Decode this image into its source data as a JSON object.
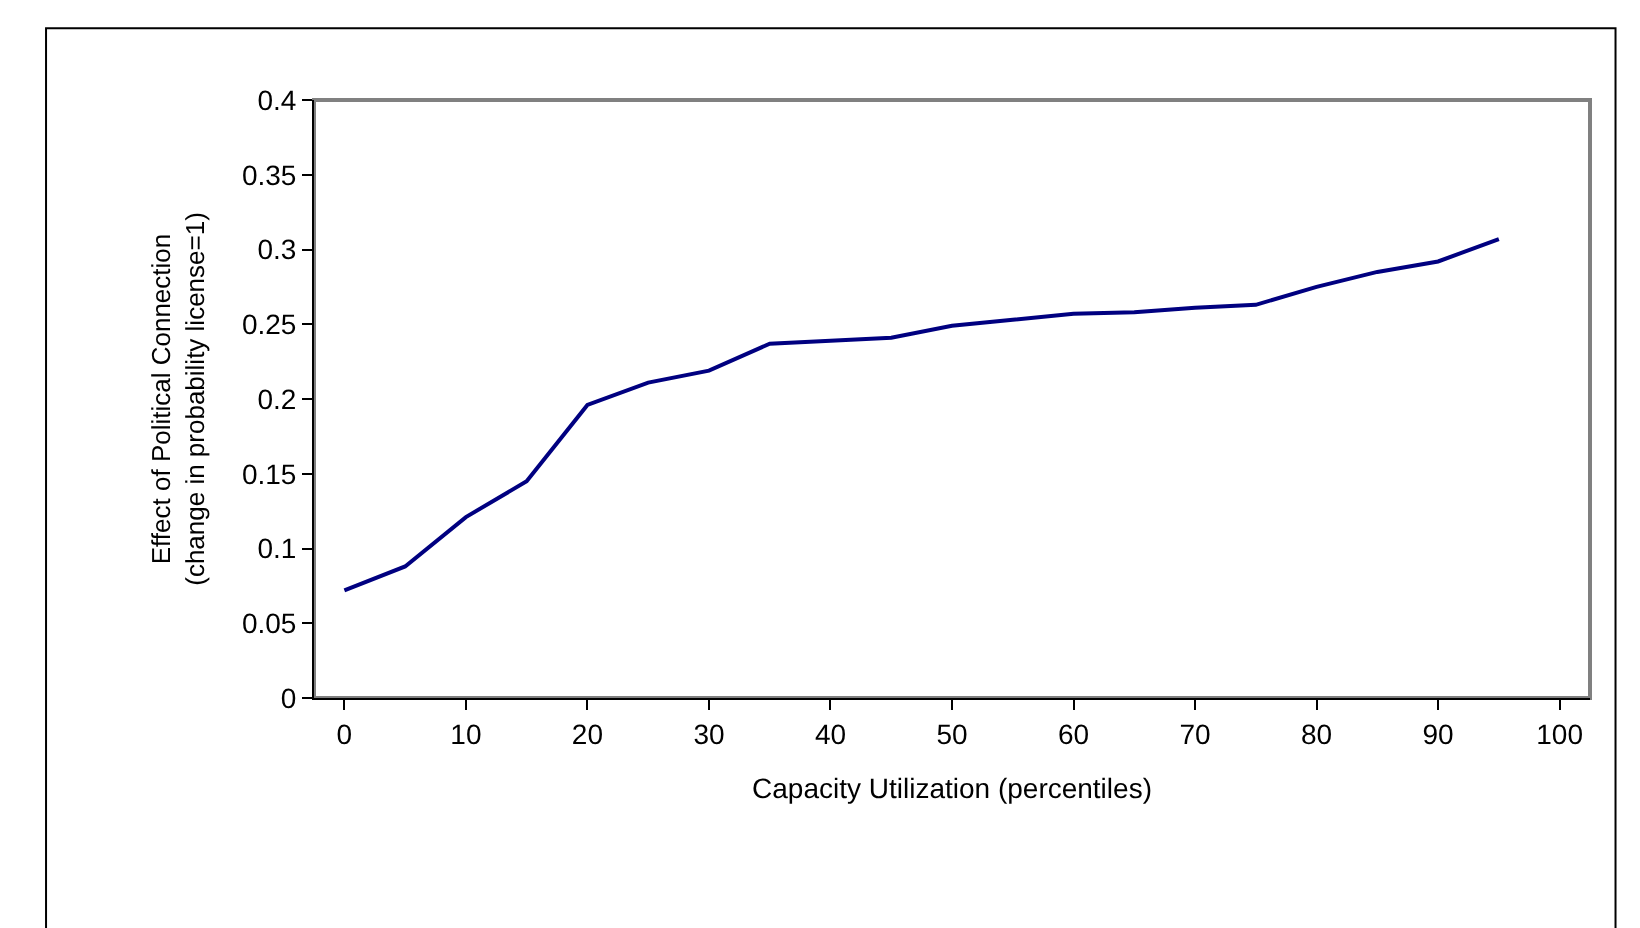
{
  "chart_data": {
    "type": "line",
    "xlabel": "Capacity Utilization (percentiles)",
    "ylabel": "Effect of Political Connection\n(change in probability license=1)",
    "x": [
      0,
      5,
      10,
      15,
      20,
      25,
      30,
      35,
      40,
      45,
      50,
      55,
      60,
      65,
      70,
      75,
      80,
      85,
      90,
      95
    ],
    "series": [
      {
        "color": "#000080",
        "values": [
          0.072,
          0.088,
          0.121,
          0.145,
          0.196,
          0.211,
          0.219,
          0.237,
          0.239,
          0.241,
          0.249,
          0.253,
          0.257,
          0.258,
          0.261,
          0.263,
          0.275,
          0.285,
          0.292,
          0.307
        ]
      }
    ],
    "xlim": [
      -2.5,
      102.5
    ],
    "xticks": [
      0,
      10,
      20,
      30,
      40,
      50,
      60,
      70,
      80,
      90,
      100
    ],
    "ylim": [
      0,
      0.4
    ],
    "yticks": [
      0,
      0.05,
      0.1,
      0.15,
      0.2,
      0.25,
      0.3,
      0.35,
      0.4
    ],
    "grid": false,
    "legend": false,
    "marker": "none",
    "line_style": "solid"
  }
}
